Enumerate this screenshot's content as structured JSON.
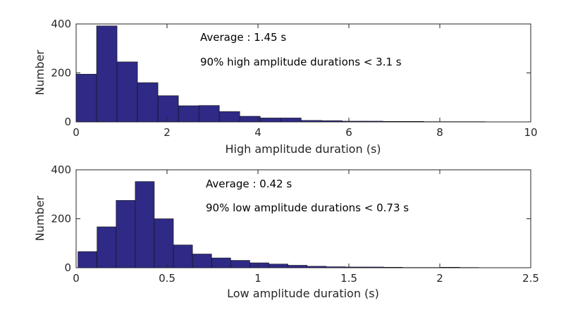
{
  "chart_data": [
    {
      "type": "bar",
      "panel": "top",
      "bin_width": 0.45,
      "bin_start": 0,
      "values": [
        195,
        392,
        245,
        160,
        107,
        66,
        67,
        42,
        23,
        16,
        16,
        6,
        5,
        3,
        3,
        2,
        2,
        1,
        1,
        1,
        0,
        0
      ],
      "xlim": [
        0,
        10
      ],
      "ylim": [
        0,
        400
      ],
      "xticks": [
        "0",
        "2",
        "4",
        "6",
        "8",
        "10"
      ],
      "xtick_values": [
        0,
        2,
        4,
        6,
        8,
        10
      ],
      "yticks": [
        "0",
        "200",
        "400"
      ],
      "ytick_values": [
        0,
        200,
        400
      ],
      "xlabel": "High amplitude duration (s)",
      "ylabel": "Number",
      "annotations": [
        "Average : 1.45 s",
        "90% high amplitude durations < 3.1 s"
      ],
      "bar_color": "#2e2a85"
    },
    {
      "type": "bar",
      "panel": "bottom",
      "bin_width": 0.105,
      "bin_start": 0.01,
      "values": [
        66,
        167,
        275,
        352,
        200,
        93,
        56,
        40,
        30,
        20,
        15,
        10,
        6,
        4,
        3,
        3,
        2,
        1,
        1,
        2,
        1,
        0
      ],
      "xlim": [
        0,
        2.5
      ],
      "ylim": [
        0,
        400
      ],
      "xticks": [
        "0",
        "0.5",
        "1",
        "1.5",
        "2",
        "2.5"
      ],
      "xtick_values": [
        0,
        0.5,
        1,
        1.5,
        2,
        2.5
      ],
      "yticks": [
        "0",
        "200",
        "400"
      ],
      "ytick_values": [
        0,
        200,
        400
      ],
      "xlabel": "Low amplitude duration (s)",
      "ylabel": "Number",
      "annotations": [
        "Average : 0.42 s",
        "90% low amplitude durations < 0.73 s"
      ],
      "bar_color": "#2e2a85"
    }
  ]
}
